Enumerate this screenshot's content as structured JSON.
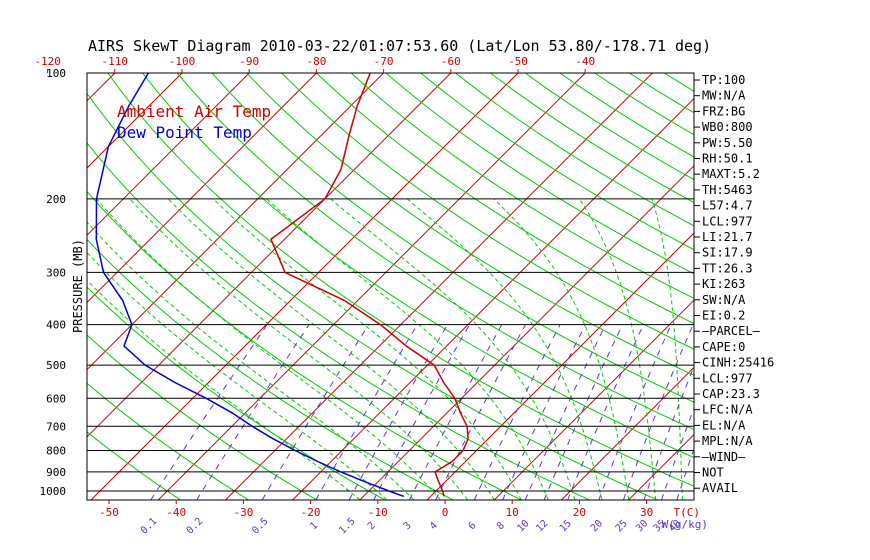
{
  "title": "AIRS SkewT Diagram 2010-03-22/01:07:53.60 (Lat/Lon 53.80/-178.71 deg)",
  "colors": {
    "temp": "#cc0000",
    "dew": "#0000cc",
    "dry_adiabat": "#00cc00",
    "isotherm": "#cc0000",
    "mixing": "#6633cc",
    "moist": "#00cc00",
    "frame": "#000000"
  },
  "chart_data": {
    "type": "line",
    "title": "AIRS SkewT Diagram 2010-03-22/01:07:53.60 (Lat/Lon 53.80/-178.71 deg)",
    "ylabel": "PRESSURE (MB)",
    "xlabel": "T(C)",
    "mixing_unit_label": "W(g/kg)",
    "ylim": [
      1050,
      100
    ],
    "pressure_ticks": [
      100,
      200,
      300,
      400,
      500,
      600,
      700,
      800,
      900,
      1000
    ],
    "top_temp_ticks": [
      -120,
      -110,
      -100,
      -90,
      -80,
      -70,
      -60,
      -50,
      -40
    ],
    "bottom_temp_ticks": [
      -50,
      -40,
      -30,
      -20,
      -10,
      0,
      10,
      20,
      30
    ],
    "mixing_ratio_labels": [
      "0.1",
      "0.2",
      "0.5",
      "1",
      "1.5",
      "2",
      "3",
      "4",
      "6",
      "8",
      "10",
      "12",
      "15",
      "20",
      "25",
      "30",
      "35",
      "40"
    ],
    "legend": [
      {
        "name": "Ambient Air Temp",
        "color": "#cc0000"
      },
      {
        "name": "Dew Point Temp",
        "color": "#0000cc"
      }
    ],
    "series": [
      {
        "name": "Ambient Air Temp",
        "pressure": [
          1030,
          1000,
          950,
          900,
          850,
          800,
          750,
          700,
          650,
          600,
          550,
          500,
          450,
          400,
          350,
          300,
          250,
          200,
          170,
          140,
          120,
          100
        ],
        "temperature": [
          2,
          1,
          -1,
          -3,
          -2,
          -2,
          -3,
          -5,
          -8,
          -11,
          -15,
          -19,
          -26,
          -33,
          -42,
          -55,
          -62,
          -60,
          -62,
          -66,
          -69,
          -72
        ]
      },
      {
        "name": "Dew Point Temp",
        "pressure": [
          1030,
          1000,
          950,
          900,
          850,
          800,
          750,
          700,
          650,
          600,
          550,
          500,
          450,
          400,
          350,
          300,
          250,
          200,
          150,
          120,
          100
        ],
        "temperature": [
          -4,
          -7,
          -12,
          -17,
          -22,
          -27,
          -32,
          -37,
          -42,
          -48,
          -55,
          -62,
          -68,
          -70,
          -75,
          -82,
          -88,
          -94,
          -100,
          -103,
          -105
        ]
      }
    ]
  },
  "indices": [
    "TP:100",
    "MW:N/A",
    "FRZ:BG",
    "WB0:800",
    "PW:5.50",
    "RH:50.1",
    "MAXT:5.2",
    "TH:5463",
    "L57:4.7",
    "LCL:977",
    "LI:21.7",
    "SI:17.9",
    "TT:26.3",
    "KI:263",
    "SW:N/A",
    "EI:0.2",
    "—PARCEL—",
    "CAPE:0",
    "CINH:25416",
    "LCL:977",
    "CAP:23.3",
    "LFC:N/A",
    "EL:N/A",
    "MPL:N/A",
    "—WIND—",
    "NOT",
    "AVAIL"
  ]
}
